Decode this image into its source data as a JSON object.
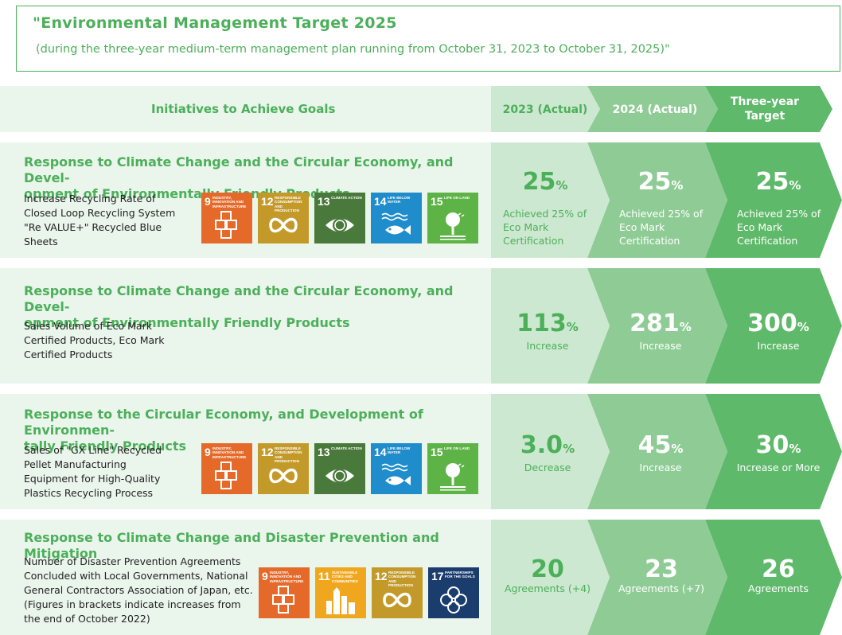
{
  "header": {
    "title": "\"Environmental Management Target 2025",
    "subtitle": "(during the three-year medium-term management plan running from October 31, 2023 to October 31, 2025)\""
  },
  "table_header": {
    "initiatives": "Initiatives to Achieve Goals",
    "col1": "2023 (Actual)",
    "col2": "2024 (Actual)",
    "col3_line1": "Three-year",
    "col3_line2": "Target"
  },
  "colors": {
    "green": "#4caf5a",
    "pale": "#eaf5ec",
    "col1": "#cde8d0",
    "col2": "#8fcc95",
    "col3": "#5fb96a"
  },
  "rows": [
    {
      "title_line1": "Response to Climate Change and the Circular Economy, and Devel-",
      "title_line2": "opment of Environmentally Friendly Products",
      "desc": [
        "Increase Recycling Rate of",
        "Closed Loop Recycling System",
        "\"Re VALUE+\" Recycled Blue",
        "Sheets"
      ],
      "sdgs": [
        {
          "num": "9",
          "label": "INDUSTRY, INNOVATION AND INFRASTRUCTURE",
          "icon": "cubes-icon",
          "color": "#e56a2a"
        },
        {
          "num": "12",
          "label": "RESPONSIBLE CONSUMPTION AND PRODUCTION",
          "icon": "infinity-icon",
          "color": "#c39a2a"
        },
        {
          "num": "13",
          "label": "CLIMATE ACTION",
          "icon": "eye-globe-icon",
          "color": "#4a7a3b"
        },
        {
          "num": "14",
          "label": "LIFE BELOW WATER",
          "icon": "fish-icon",
          "color": "#1f8ccc"
        },
        {
          "num": "15",
          "label": "LIFE ON LAND",
          "icon": "tree-icon",
          "color": "#5db346"
        }
      ],
      "v1": {
        "num": "25",
        "unit": "%",
        "cap": [
          "Achieved 25% of",
          "Eco Mark",
          "Certification"
        ]
      },
      "v2": {
        "num": "25",
        "unit": "%",
        "cap": [
          "Achieved 25% of",
          "Eco Mark",
          "Certification"
        ]
      },
      "v3": {
        "num": "25",
        "unit": "%",
        "cap": [
          "Achieved 25% of",
          "Eco Mark",
          "Certification"
        ]
      }
    },
    {
      "title_line1": "Response to Climate Change and the Circular Economy, and Devel-",
      "title_line2": "opment of Environmentally Friendly Products",
      "desc": [
        "Sales Volume of Eco Mark",
        "Certified Products, Eco Mark",
        "Certified Products"
      ],
      "v1": {
        "num": "113",
        "unit": "%",
        "cap": "Increase"
      },
      "v2": {
        "num": "281",
        "unit": "%",
        "cap": "Increase"
      },
      "v3": {
        "num": "300",
        "unit": "%",
        "cap": "Increase"
      }
    },
    {
      "title_line1": "Response to the Circular Economy, and Development of Environmen-",
      "title_line2": "tally Friendly Products",
      "desc": [
        "Sales of \"GX Line\" Recycled",
        "Pellet Manufacturing",
        "Equipment for High-Quality",
        "Plastics Recycling Process"
      ],
      "sdgs": [
        {
          "num": "9",
          "label": "INDUSTRY, INNOVATION AND INFRASTRUCTURE",
          "icon": "cubes-icon",
          "color": "#e56a2a"
        },
        {
          "num": "12",
          "label": "RESPONSIBLE CONSUMPTION AND PRODUCTION",
          "icon": "infinity-icon",
          "color": "#c39a2a"
        },
        {
          "num": "13",
          "label": "CLIMATE ACTION",
          "icon": "eye-globe-icon",
          "color": "#4a7a3b"
        },
        {
          "num": "14",
          "label": "LIFE BELOW WATER",
          "icon": "fish-icon",
          "color": "#1f8ccc"
        },
        {
          "num": "15",
          "label": "LIFE ON LAND",
          "icon": "tree-icon",
          "color": "#5db346"
        }
      ],
      "v1": {
        "num": "3.0",
        "unit": "%",
        "cap": "Decrease"
      },
      "v2": {
        "num": "45",
        "unit": "%",
        "cap": "Increase"
      },
      "v3": {
        "num": "30",
        "unit": "%",
        "cap": "Increase or More"
      }
    },
    {
      "title_line1": "Response to Climate Change and Disaster Prevention and Mitigation",
      "desc": [
        "Number of Disaster Prevention Agreements",
        "Concluded with Local Governments, National",
        "General Contractors Association of Japan, etc.",
        "(Figures in brackets indicate increases from",
        "the end of October 2022)"
      ],
      "sdgs": [
        {
          "num": "9",
          "label": "INDUSTRY, INNOVATION AND INFRASTRUCTURE",
          "icon": "cubes-icon",
          "color": "#e56a2a"
        },
        {
          "num": "11",
          "label": "SUSTAINABLE CITIES AND COMMUNITIES",
          "icon": "city-icon",
          "color": "#f0a71e"
        },
        {
          "num": "12",
          "label": "RESPONSIBLE CONSUMPTION AND PRODUCTION",
          "icon": "infinity-icon",
          "color": "#c39a2a"
        },
        {
          "num": "17",
          "label": "PARTNERSHIPS FOR THE GOALS",
          "icon": "flower-icon",
          "color": "#1b3d6e"
        }
      ],
      "v1": {
        "num": "20",
        "cap": "Agreements (+4)"
      },
      "v2": {
        "num": "23",
        "cap": "Agreements (+7)"
      },
      "v3": {
        "num": "26",
        "cap": "Agreements"
      }
    }
  ]
}
